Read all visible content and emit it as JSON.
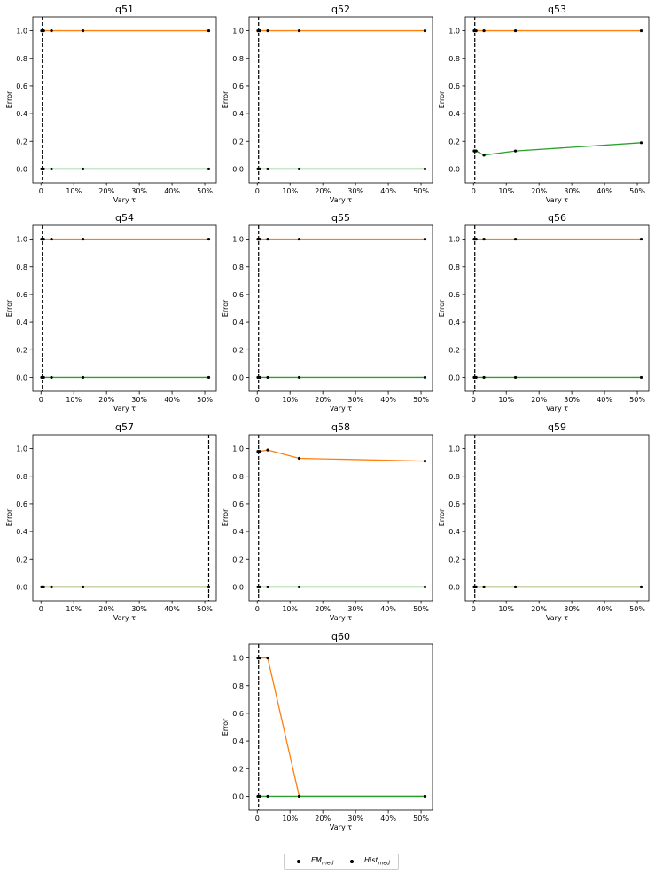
{
  "chart_data": {
    "type": "line",
    "xlabel": "Vary τ",
    "ylabel": "Error",
    "ylim": [
      -0.1,
      1.1
    ],
    "xlim": [
      -2.5,
      53.5
    ],
    "y_ticks": [
      0.0,
      0.2,
      0.4,
      0.6,
      0.8,
      1.0
    ],
    "y_tick_labels": [
      "0.0",
      "0.2",
      "0.4",
      "0.6",
      "0.8",
      "1.0"
    ],
    "x_ticks": [
      0,
      10,
      20,
      30,
      40,
      50
    ],
    "x_tick_labels": [
      "0",
      "10%",
      "20%",
      "30%",
      "40%",
      "50%"
    ],
    "x": [
      0.2,
      0.4,
      0.8,
      3.2,
      12.8,
      51.2
    ],
    "series_meta": [
      {
        "key": "em",
        "color": "#ff7f0e",
        "legend_label": "EM",
        "legend_sub": "med"
      },
      {
        "key": "hist",
        "color": "#2ca02c",
        "legend_label": "Hist",
        "legend_sub": "med"
      }
    ],
    "panels": [
      {
        "title": "q51",
        "vline": 0.4,
        "em": [
          1.0,
          1.0,
          1.0,
          1.0,
          1.0,
          1.0
        ],
        "hist": [
          0.0,
          0.0,
          0.0,
          0.0,
          0.0,
          0.0
        ]
      },
      {
        "title": "q52",
        "vline": 0.4,
        "em": [
          1.0,
          1.0,
          1.0,
          1.0,
          1.0,
          1.0
        ],
        "hist": [
          0.0,
          0.0,
          0.0,
          0.0,
          0.0,
          0.0
        ]
      },
      {
        "title": "q53",
        "vline": 0.4,
        "em": [
          1.0,
          1.0,
          1.0,
          1.0,
          1.0,
          1.0
        ],
        "hist": [
          0.13,
          0.13,
          0.13,
          0.1,
          0.13,
          0.19
        ]
      },
      {
        "title": "q54",
        "vline": 0.4,
        "em": [
          1.0,
          1.0,
          1.0,
          1.0,
          1.0,
          1.0
        ],
        "hist": [
          0.0,
          0.0,
          0.0,
          0.0,
          0.0,
          0.0
        ]
      },
      {
        "title": "q55",
        "vline": 0.4,
        "em": [
          1.0,
          1.0,
          1.0,
          1.0,
          1.0,
          1.0
        ],
        "hist": [
          0.0,
          0.0,
          0.0,
          0.0,
          0.0,
          0.0
        ]
      },
      {
        "title": "q56",
        "vline": 0.4,
        "em": [
          1.0,
          1.0,
          1.0,
          1.0,
          1.0,
          1.0
        ],
        "hist": [
          0.0,
          0.0,
          0.0,
          0.0,
          0.0,
          0.0
        ]
      },
      {
        "title": "q57",
        "vline": 51.2,
        "em": [
          0.0,
          0.0,
          0.0,
          0.0,
          0.0,
          0.0
        ],
        "hist": [
          0.0,
          0.0,
          0.0,
          0.0,
          0.0,
          0.0
        ]
      },
      {
        "title": "q58",
        "vline": 0.4,
        "em": [
          0.98,
          0.98,
          0.98,
          0.99,
          0.93,
          0.91
        ],
        "hist": [
          0.0,
          0.0,
          0.0,
          0.0,
          0.0,
          0.0
        ]
      },
      {
        "title": "q59",
        "vline": 0.4,
        "em": [
          0.0,
          0.0,
          0.0,
          0.0,
          0.0,
          0.0
        ],
        "hist": [
          0.0,
          0.0,
          0.0,
          0.0,
          0.0,
          0.0
        ]
      },
      {
        "title": "q60",
        "vline": 0.4,
        "em": [
          1.0,
          1.0,
          1.0,
          1.0,
          0.0,
          0.0
        ],
        "hist": [
          0.0,
          0.0,
          0.0,
          0.0,
          0.0,
          0.0
        ]
      }
    ]
  }
}
